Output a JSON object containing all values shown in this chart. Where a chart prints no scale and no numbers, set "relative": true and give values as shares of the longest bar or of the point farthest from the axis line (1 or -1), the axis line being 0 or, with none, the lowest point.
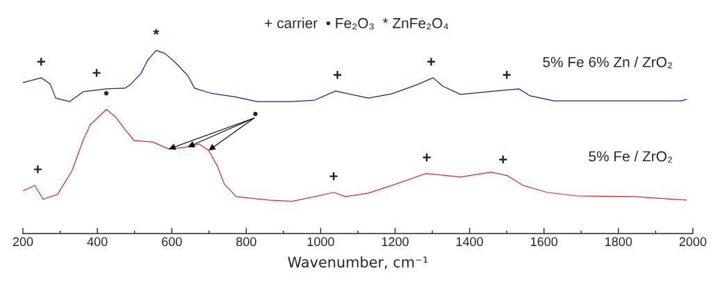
{
  "chart_data": {
    "type": "line",
    "relative": true,
    "title": "+ carrier  • Fe₂O₃  * ZnFe₂O₄",
    "xlabel": "Wavenumber, cm⁻¹",
    "xlim": [
      200,
      2000
    ],
    "xticks": [
      200,
      400,
      600,
      800,
      1000,
      1200,
      1400,
      1600,
      1800,
      2000
    ],
    "grid": false,
    "legend": false,
    "tick_labels": "x",
    "series": [
      {
        "name": "5% Fe 6% Zn / ZrO₂",
        "color": "#1a1aa6",
        "x": [
          200,
          250,
          273,
          288,
          325,
          362,
          424,
          474,
          488,
          517,
          536,
          558,
          581,
          611,
          643,
          661,
          704,
          768,
          829,
          923,
          984,
          1040,
          1128,
          1190,
          1259,
          1302,
          1328,
          1376,
          1470,
          1533,
          1563,
          1627,
          1781,
          1968,
          1983
        ],
        "values": [
          0.824,
          0.851,
          0.817,
          0.74,
          0.721,
          0.775,
          0.79,
          0.794,
          0.813,
          0.874,
          0.95,
          1.0,
          0.985,
          0.931,
          0.863,
          0.794,
          0.767,
          0.748,
          0.721,
          0.721,
          0.729,
          0.779,
          0.74,
          0.763,
          0.813,
          0.851,
          0.805,
          0.76,
          0.779,
          0.79,
          0.752,
          0.725,
          0.725,
          0.725,
          0.733
        ]
      },
      {
        "name": "5% Fe / ZrO₂",
        "color": "#d42a2a",
        "x": [
          200,
          232,
          254,
          293,
          331,
          362,
          381,
          405,
          424,
          450,
          474,
          499,
          549,
          592,
          643,
          674,
          699,
          723,
          741,
          773,
          861,
          923,
          984,
          1035,
          1066,
          1128,
          1203,
          1283,
          1376,
          1458,
          1501,
          1544,
          1608,
          1688,
          1843,
          1983
        ],
        "values": [
          0.233,
          0.263,
          0.187,
          0.214,
          0.34,
          0.511,
          0.595,
          0.641,
          0.679,
          0.634,
          0.569,
          0.508,
          0.5,
          0.462,
          0.473,
          0.489,
          0.454,
          0.366,
          0.271,
          0.202,
          0.183,
          0.176,
          0.202,
          0.225,
          0.202,
          0.221,
          0.271,
          0.328,
          0.309,
          0.336,
          0.317,
          0.263,
          0.225,
          0.206,
          0.202,
          0.183
        ]
      }
    ],
    "annotations": [
      {
        "text": "+",
        "x": 249,
        "y": 0.851
      },
      {
        "text": "+",
        "x": 398,
        "y": 0.79
      },
      {
        "text": "*",
        "x": 558,
        "y": 1.0
      },
      {
        "text": "+",
        "x": 1045,
        "y": 0.779
      },
      {
        "text": "+",
        "x": 1297,
        "y": 0.851
      },
      {
        "text": "+",
        "x": 1500,
        "y": 0.779
      },
      {
        "text": "•",
        "x": 424,
        "y": 0.679
      },
      {
        "text": "+",
        "x": 240,
        "y": 0.263
      },
      {
        "text": "+",
        "x": 1035,
        "y": 0.225
      },
      {
        "text": "+",
        "x": 1285,
        "y": 0.328
      },
      {
        "text": "+",
        "x": 1490,
        "y": 0.317
      },
      {
        "text": "•",
        "x": 643,
        "y": 0.473
      }
    ]
  }
}
